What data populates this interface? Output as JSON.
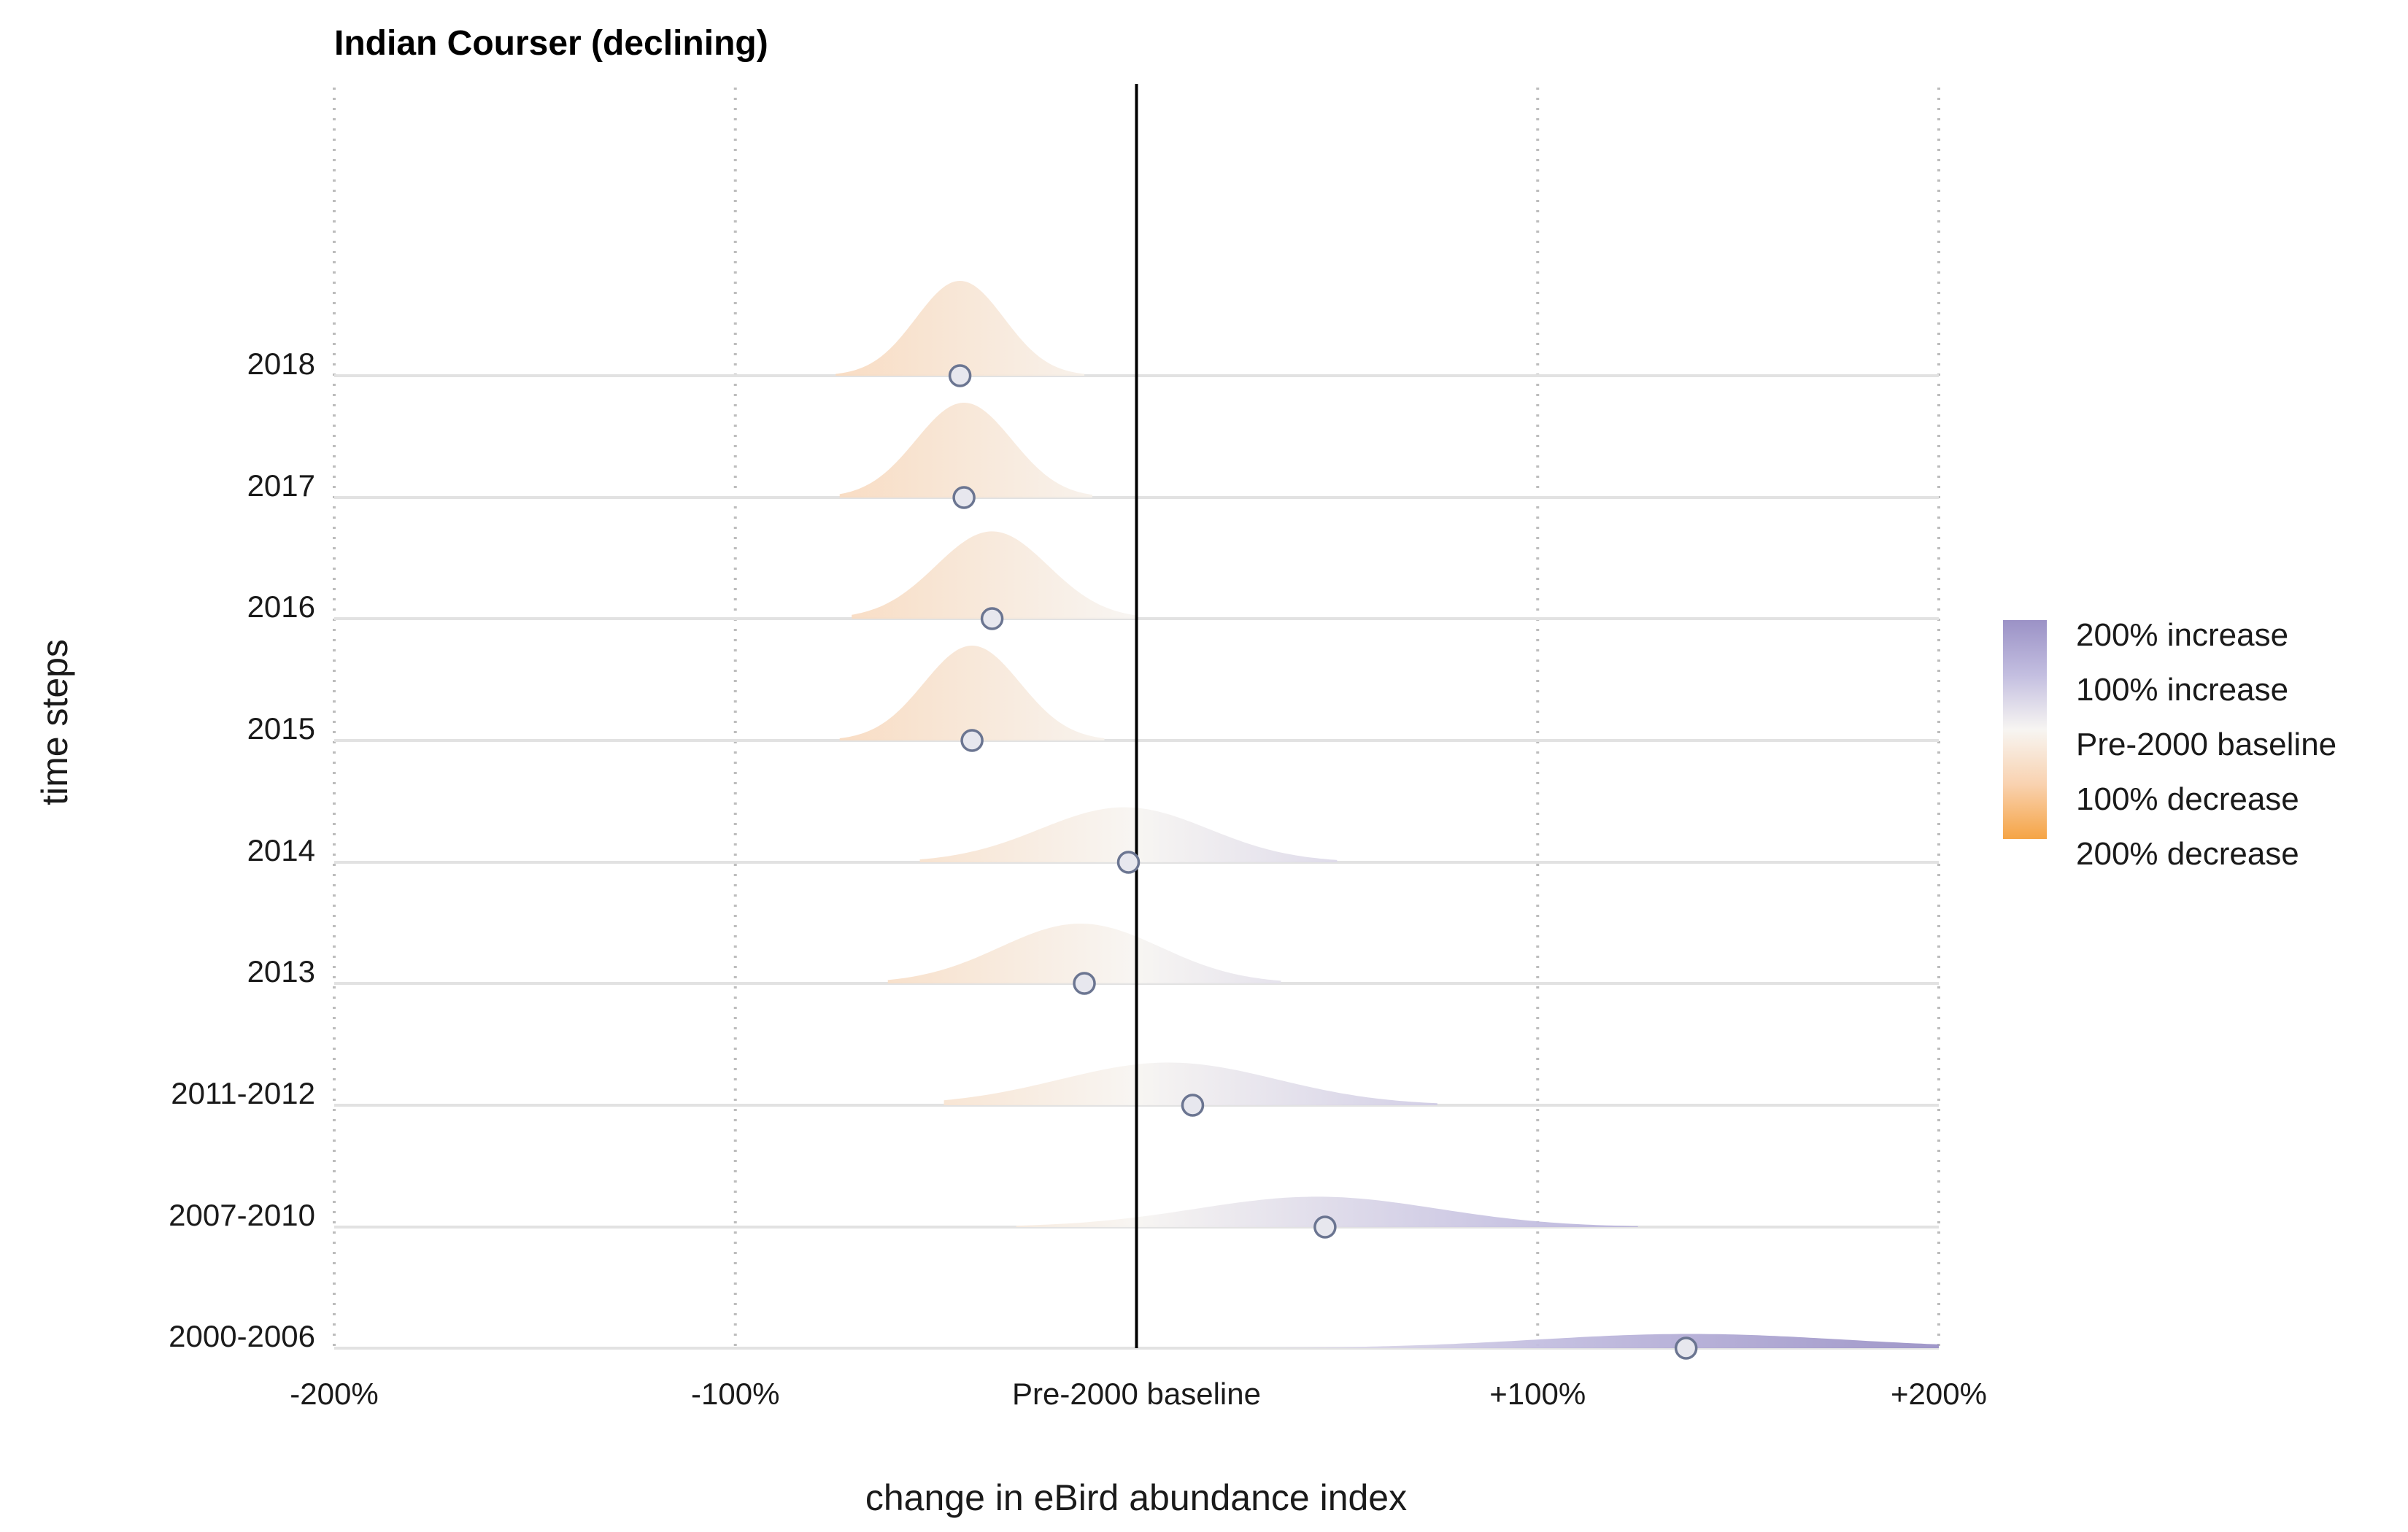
{
  "chart_data": {
    "type": "ridgeline",
    "title": "Indian Courser (declining)",
    "xlabel": "change in eBird abundance index",
    "ylabel": "time steps",
    "xlim": [
      -200,
      200
    ],
    "x_ticks": [
      -200,
      -100,
      0,
      100,
      200
    ],
    "x_tick_labels": [
      "-200%",
      "-100%",
      "Pre-2000 baseline",
      "+100%",
      "+200%"
    ],
    "grid": true,
    "baseline_line_x": 0,
    "categories": [
      "2000-2006",
      "2007-2010",
      "2011-2012",
      "2013",
      "2014",
      "2015",
      "2016",
      "2017",
      "2018"
    ],
    "series": [
      {
        "label": "2000-2006",
        "median": 137,
        "peak": 138,
        "spread": 38,
        "extent": [
          25,
          200
        ],
        "height": 0.15
      },
      {
        "label": "2007-2010",
        "median": 47,
        "peak": 45,
        "spread": 30,
        "extent": [
          -30,
          125
        ],
        "height": 0.32
      },
      {
        "label": "2011-2012",
        "median": 14,
        "peak": 8,
        "spread": 27,
        "extent": [
          -48,
          75
        ],
        "height": 0.45
      },
      {
        "label": "2013",
        "median": -13,
        "peak": -14,
        "spread": 20,
        "extent": [
          -62,
          36
        ],
        "height": 0.63
      },
      {
        "label": "2014",
        "median": -2,
        "peak": -3,
        "spread": 21,
        "extent": [
          -54,
          50
        ],
        "height": 0.58
      },
      {
        "label": "2015",
        "median": -41,
        "peak": -41,
        "spread": 12,
        "extent": [
          -74,
          -8
        ],
        "height": 1.0
      },
      {
        "label": "2016",
        "median": -36,
        "peak": -36,
        "spread": 14,
        "extent": [
          -71,
          0
        ],
        "height": 0.92
      },
      {
        "label": "2017",
        "median": -43,
        "peak": -43,
        "spread": 12,
        "extent": [
          -74,
          -11
        ],
        "height": 1.0
      },
      {
        "label": "2018",
        "median": -44,
        "peak": -44,
        "spread": 11,
        "extent": [
          -75,
          -13
        ],
        "height": 1.0
      }
    ],
    "legend": {
      "position": "right",
      "items": [
        "200% increase",
        "100% increase",
        "Pre-2000 baseline",
        "100% decrease",
        "200% decrease"
      ],
      "colors": [
        "#9b92c6",
        "#c3bee0",
        "#f7f5f2",
        "#f9d2b0",
        "#f5a445"
      ]
    },
    "colors": {
      "increase_max": "#9b92c6",
      "baseline": "#f7f5f2",
      "decrease_max": "#f5a445",
      "point_fill": "#e7e7ee",
      "point_stroke": "#6b7591",
      "grid": "#bdbdbd",
      "row_line": "#e2e2e2"
    }
  }
}
